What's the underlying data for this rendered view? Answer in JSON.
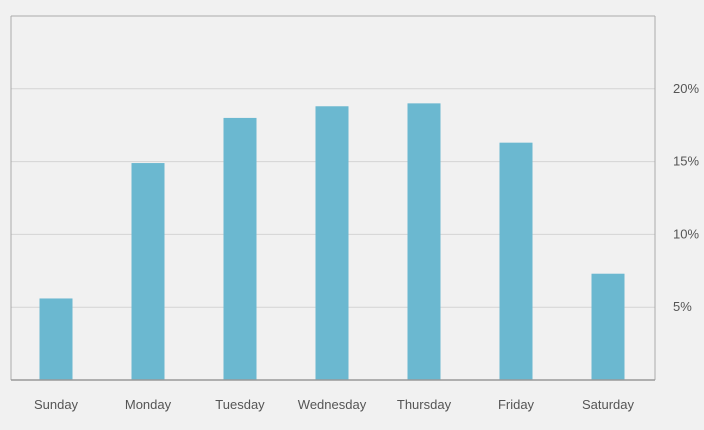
{
  "chart_data": {
    "type": "bar",
    "categories": [
      "Sunday",
      "Monday",
      "Tuesday",
      "Wednesday",
      "Thursday",
      "Friday",
      "Saturday"
    ],
    "values": [
      5.6,
      14.9,
      18.0,
      18.8,
      19.0,
      16.3,
      7.3
    ],
    "ylim": [
      0,
      25
    ],
    "y_ticks": [
      5,
      10,
      15,
      20
    ],
    "y_tick_labels": [
      "5%",
      "10%",
      "15%",
      "20%"
    ],
    "y_axis_position": "right",
    "grid": true,
    "legend": "none",
    "colors": {
      "bar": "#6bb8d0",
      "grid": "#d4d4d4",
      "axis": "#aaaaaa",
      "background": "#f1f1f1",
      "text": "#555555"
    }
  }
}
